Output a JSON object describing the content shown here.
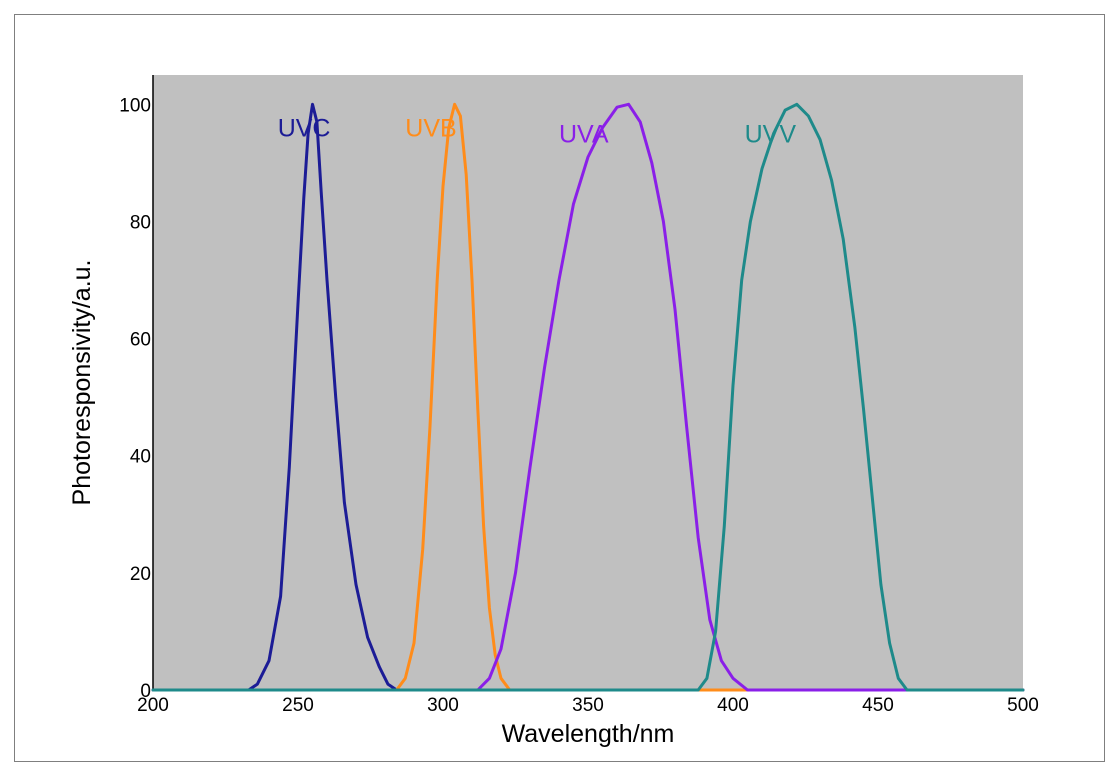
{
  "chart_data": {
    "type": "line",
    "title": "",
    "xlabel": "Wavelength/nm",
    "ylabel": "Photoresponsivity/a.u.",
    "xlim": [
      200,
      500
    ],
    "ylim": [
      0,
      105
    ],
    "x_ticks": [
      200,
      250,
      300,
      350,
      400,
      450,
      500
    ],
    "y_ticks": [
      0,
      20,
      40,
      60,
      80,
      100
    ],
    "grid": false,
    "plot_background": "#c0c0c0",
    "legend": "inline labels near peaks",
    "series": [
      {
        "name": "UVC",
        "color": "#1c1c96",
        "points": [
          [
            200,
            0
          ],
          [
            233,
            0
          ],
          [
            236,
            1
          ],
          [
            240,
            5
          ],
          [
            244,
            16
          ],
          [
            247,
            38
          ],
          [
            250,
            66
          ],
          [
            252,
            84
          ],
          [
            253.5,
            95
          ],
          [
            255,
            100
          ],
          [
            256.5,
            97
          ],
          [
            258,
            85
          ],
          [
            260,
            70
          ],
          [
            263,
            50
          ],
          [
            266,
            32
          ],
          [
            270,
            18
          ],
          [
            274,
            9
          ],
          [
            278,
            4
          ],
          [
            281,
            1
          ],
          [
            284,
            0
          ],
          [
            500,
            0
          ]
        ]
      },
      {
        "name": "UVB",
        "color": "#ff8c1a",
        "points": [
          [
            200,
            0
          ],
          [
            284,
            0
          ],
          [
            287,
            2
          ],
          [
            290,
            8
          ],
          [
            293,
            24
          ],
          [
            295.5,
            45
          ],
          [
            298,
            70
          ],
          [
            300,
            86
          ],
          [
            302,
            96
          ],
          [
            304,
            100
          ],
          [
            306,
            98
          ],
          [
            308,
            88
          ],
          [
            310,
            70
          ],
          [
            312,
            48
          ],
          [
            314,
            28
          ],
          [
            316,
            14
          ],
          [
            318,
            6
          ],
          [
            320,
            2
          ],
          [
            323,
            0
          ],
          [
            500,
            0
          ]
        ]
      },
      {
        "name": "UVA",
        "color": "#8a1fe8",
        "points": [
          [
            200,
            0
          ],
          [
            312,
            0
          ],
          [
            316,
            2
          ],
          [
            320,
            7
          ],
          [
            325,
            20
          ],
          [
            330,
            38
          ],
          [
            335,
            55
          ],
          [
            340,
            70
          ],
          [
            345,
            83
          ],
          [
            350,
            91
          ],
          [
            355,
            96
          ],
          [
            360,
            99.5
          ],
          [
            364,
            100
          ],
          [
            368,
            97
          ],
          [
            372,
            90
          ],
          [
            376,
            80
          ],
          [
            380,
            65
          ],
          [
            384,
            45
          ],
          [
            388,
            26
          ],
          [
            392,
            12
          ],
          [
            396,
            5
          ],
          [
            400,
            2
          ],
          [
            405,
            0
          ],
          [
            500,
            0
          ]
        ]
      },
      {
        "name": "UVV",
        "color": "#1e8a8a",
        "points": [
          [
            200,
            0
          ],
          [
            388,
            0
          ],
          [
            391,
            2
          ],
          [
            394,
            10
          ],
          [
            397,
            28
          ],
          [
            400,
            52
          ],
          [
            403,
            70
          ],
          [
            406,
            80
          ],
          [
            410,
            89
          ],
          [
            414,
            95
          ],
          [
            418,
            99
          ],
          [
            422,
            100
          ],
          [
            426,
            98
          ],
          [
            430,
            94
          ],
          [
            434,
            87
          ],
          [
            438,
            77
          ],
          [
            442,
            62
          ],
          [
            445,
            48
          ],
          [
            448,
            33
          ],
          [
            451,
            18
          ],
          [
            454,
            8
          ],
          [
            457,
            2
          ],
          [
            460,
            0
          ],
          [
            500,
            0
          ]
        ]
      }
    ],
    "labels": [
      {
        "text": "UVC",
        "x": 243,
        "y": 96,
        "color": "#1c1c96"
      },
      {
        "text": "UVB",
        "x": 287,
        "y": 96,
        "color": "#ff8c1a"
      },
      {
        "text": "UVA",
        "x": 340,
        "y": 95,
        "color": "#8a1fe8"
      },
      {
        "text": "UVV",
        "x": 404,
        "y": 95,
        "color": "#1e8a8a"
      }
    ]
  }
}
